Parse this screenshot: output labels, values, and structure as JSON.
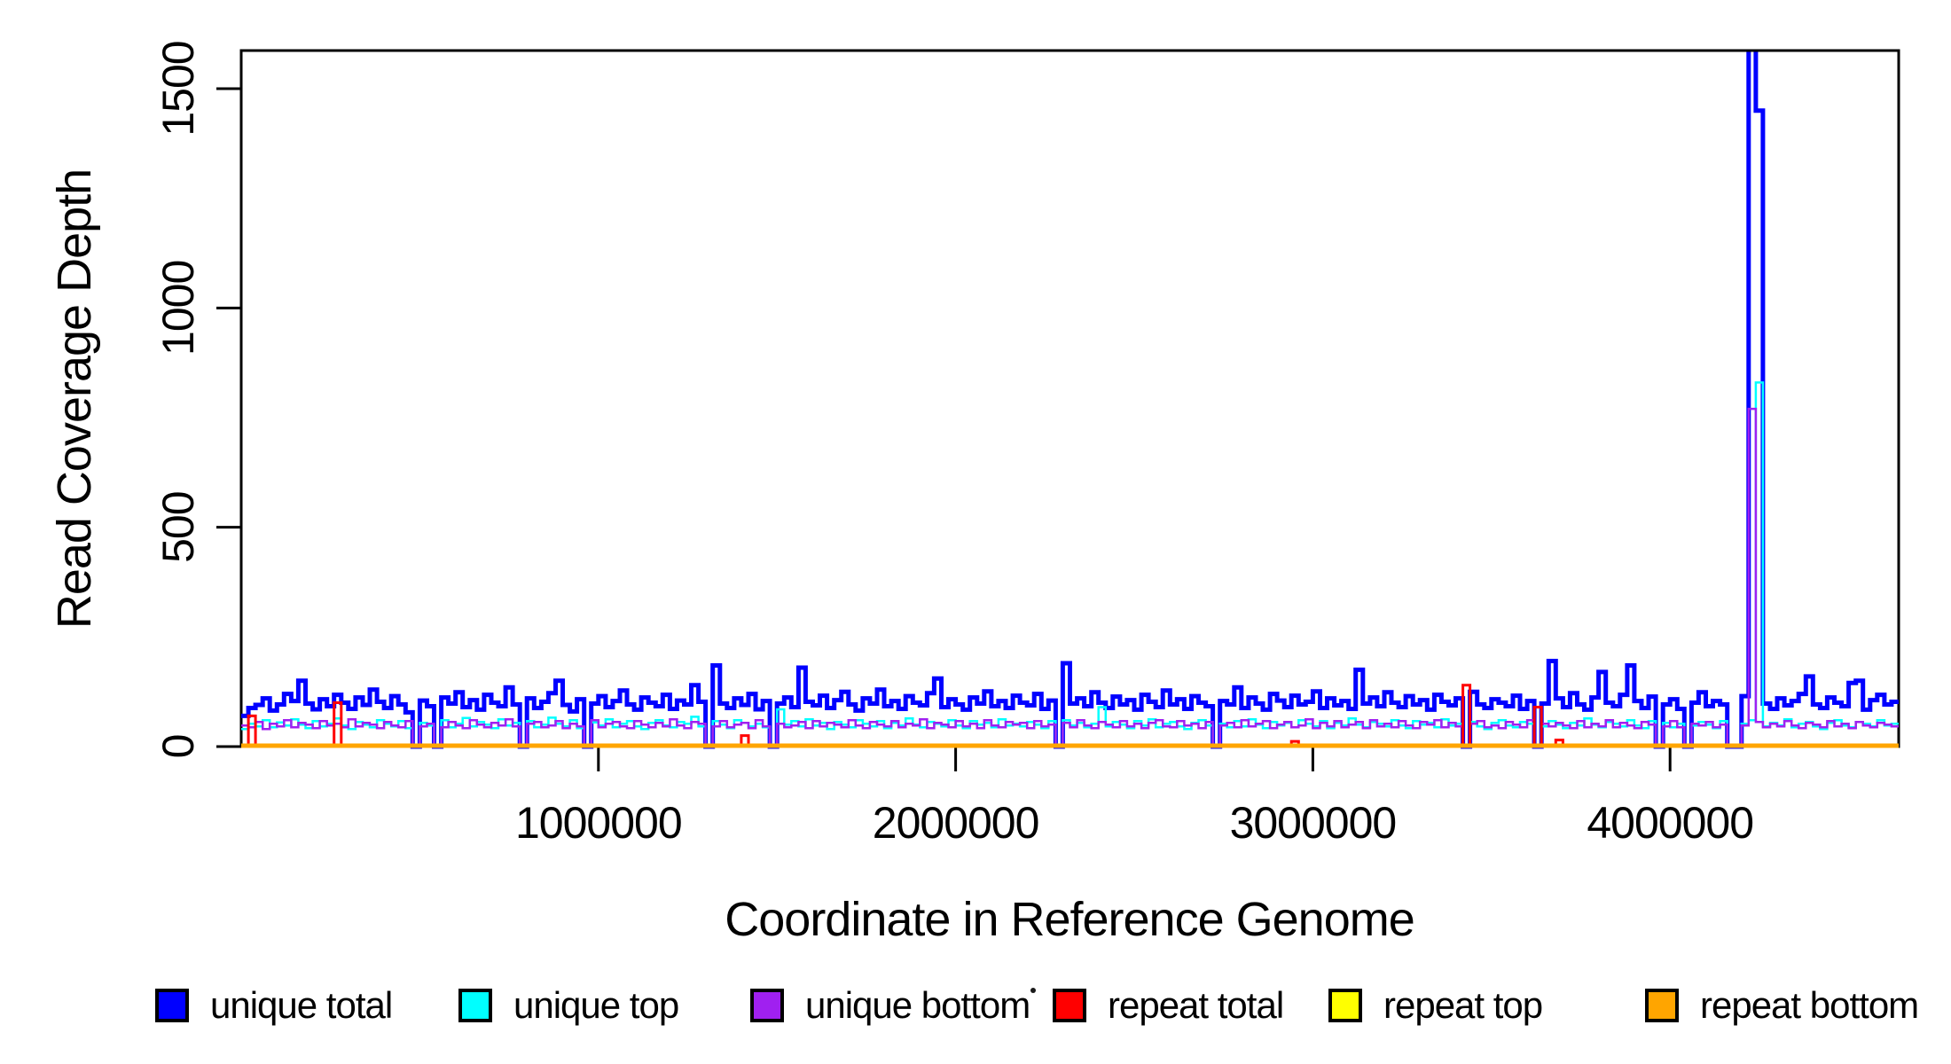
{
  "axes": {
    "x": {
      "label": "Coordinate in Reference Genome",
      "ticks": [
        1000000,
        2000000,
        3000000,
        4000000
      ],
      "tick_labels": [
        "1000000",
        "2000000",
        "3000000",
        "4000000"
      ],
      "range": [
        0,
        4640000
      ]
    },
    "y": {
      "label": "Read Coverage Depth",
      "ticks": [
        0,
        500,
        1000,
        1500
      ],
      "tick_labels": [
        "0",
        "500",
        "1000",
        "1500"
      ],
      "range": [
        0,
        1587
      ]
    }
  },
  "legend": {
    "items": [
      {
        "label": "unique total",
        "color": "#0000FF"
      },
      {
        "label": "unique top",
        "color": "#00FFFF"
      },
      {
        "label": "unique bottom",
        "color": "#A020F0"
      },
      {
        "label": "repeat total",
        "color": "#FF0000"
      },
      {
        "label": "repeat top",
        "color": "#FFFF00"
      },
      {
        "label": "repeat bottom",
        "color": "#FFA500"
      }
    ]
  },
  "chart_data": {
    "type": "line",
    "step": true,
    "title": "",
    "xlabel": "Coordinate in Reference Genome",
    "ylabel": "Read Coverage Depth",
    "xlim": [
      0,
      4640000
    ],
    "ylim": [
      0,
      1587
    ],
    "bin_size": 20000,
    "grid": false,
    "legend_position": "bottom",
    "annotations": {
      "main_peak_coordinate": 4235000,
      "main_peak_clipped_at_top": true,
      "main_peak_unique_total": 1620,
      "main_peak_step_value": 1450,
      "main_peak_unique_top": 830,
      "main_peak_unique_bottom": 770
    },
    "series": [
      {
        "name": "unique total",
        "color": "#0000FF",
        "line_width": 5,
        "values": [
          70,
          88,
          95,
          110,
          82,
          96,
          120,
          104,
          150,
          98,
          85,
          108,
          92,
          118,
          100,
          86,
          112,
          95,
          130,
          102,
          88,
          115,
          96,
          78,
          0,
          105,
          92,
          0,
          112,
          98,
          124,
          90,
          106,
          84,
          118,
          100,
          92,
          135,
          96,
          0,
          110,
          88,
          102,
          122,
          150,
          95,
          80,
          108,
          0,
          98,
          115,
          90,
          104,
          128,
          96,
          84,
          112,
          100,
          92,
          118,
          86,
          105,
          96,
          140,
          102,
          0,
          185,
          98,
          88,
          110,
          95,
          120,
          85,
          104,
          0,
          98,
          112,
          90,
          180,
          102,
          94,
          116,
          88,
          106,
          125,
          96,
          82,
          110,
          98,
          130,
          92,
          104,
          86,
          115,
          100,
          94,
          122,
          155,
          90,
          108,
          96,
          84,
          112,
          98,
          126,
          92,
          104,
          88,
          116,
          100,
          94,
          120,
          86,
          105,
          0,
          190,
          98,
          110,
          92,
          124,
          100,
          88,
          114,
          96,
          106,
          84,
          118,
          102,
          90,
          128,
          96,
          108,
          86,
          115,
          100,
          92,
          0,
          104,
          96,
          135,
          88,
          112,
          98,
          84,
          120,
          105,
          90,
          116,
          96,
          102,
          126,
          88,
          110,
          94,
          104,
          86,
          175,
          98,
          112,
          92,
          124,
          100,
          90,
          115,
          96,
          106,
          84,
          118,
          102,
          94,
          110,
          0,
          125,
          96,
          88,
          108,
          100,
          92,
          116,
          86,
          104,
          0,
          98,
          195,
          110,
          90,
          122,
          96,
          84,
          112,
          170,
          100,
          92,
          118,
          185,
          104,
          88,
          114,
          0,
          96,
          108,
          86,
          0,
          100,
          124,
          92,
          104,
          96,
          0,
          0,
          115,
          1620,
          1450,
          98,
          86,
          110,
          94,
          104,
          120,
          160,
          96,
          88,
          112,
          100,
          92,
          145,
          150,
          84,
          106,
          118,
          96,
          102
        ]
      },
      {
        "name": "unique top",
        "color": "#00FFFF",
        "line_width": 2.5,
        "values": [
          40,
          52,
          46,
          60,
          44,
          55,
          48,
          62,
          50,
          42,
          58,
          46,
          52,
          64,
          48,
          40,
          56,
          50,
          44,
          60,
          52,
          46,
          58,
          42,
          0,
          54,
          48,
          0,
          60,
          44,
          52,
          65,
          46,
          56,
          50,
          42,
          62,
          48,
          54,
          0,
          58,
          44,
          50,
          66,
          52,
          46,
          60,
          42,
          0,
          55,
          48,
          62,
          44,
          52,
          58,
          46,
          40,
          54,
          60,
          48,
          44,
          56,
          52,
          68,
          46,
          0,
          58,
          50,
          42,
          60,
          54,
          46,
          52,
          44,
          0,
          85,
          50,
          58,
          46,
          62,
          48,
          54,
          40,
          56,
          50,
          44,
          60,
          52,
          46,
          58,
          42,
          54,
          48,
          64,
          50,
          44,
          56,
          52,
          46,
          60,
          48,
          42,
          58,
          50,
          54,
          44,
          62,
          48,
          52,
          46,
          56,
          50,
          42,
          58,
          0,
          60,
          48,
          54,
          44,
          52,
          90,
          46,
          56,
          50,
          42,
          58,
          48,
          62,
          44,
          52,
          56,
          46,
          40,
          54,
          60,
          48,
          0,
          52,
          44,
          58,
          46,
          62,
          50,
          42,
          56,
          48,
          54,
          44,
          60,
          52,
          46,
          58,
          42,
          54,
          48,
          64,
          50,
          44,
          56,
          52,
          46,
          60,
          48,
          42,
          58,
          50,
          54,
          44,
          62,
          48,
          52,
          0,
          56,
          46,
          40,
          54,
          60,
          48,
          44,
          56,
          52,
          0,
          46,
          58,
          50,
          42,
          54,
          48,
          64,
          50,
          44,
          56,
          52,
          46,
          60,
          48,
          42,
          58,
          0,
          54,
          44,
          52,
          0,
          48,
          56,
          50,
          42,
          58,
          0,
          0,
          52,
          60,
          830,
          46,
          54,
          48,
          62,
          44,
          52,
          56,
          46,
          40,
          54,
          60,
          48,
          44,
          56,
          52,
          46,
          60,
          48,
          52
        ]
      },
      {
        "name": "unique bottom",
        "color": "#A020F0",
        "line_width": 2.5,
        "values": [
          48,
          44,
          56,
          40,
          52,
          46,
          60,
          44,
          54,
          50,
          42,
          58,
          48,
          52,
          44,
          62,
          46,
          54,
          50,
          42,
          56,
          48,
          44,
          58,
          0,
          46,
          52,
          0,
          44,
          56,
          48,
          42,
          60,
          50,
          44,
          54,
          48,
          62,
          46,
          0,
          52,
          56,
          44,
          48,
          58,
          42,
          52,
          46,
          0,
          60,
          44,
          52,
          56,
          46,
          42,
          58,
          50,
          44,
          54,
          46,
          62,
          48,
          42,
          56,
          52,
          0,
          46,
          58,
          44,
          50,
          54,
          42,
          60,
          46,
          0,
          52,
          44,
          48,
          56,
          42,
          58,
          46,
          54,
          50,
          44,
          60,
          48,
          42,
          56,
          50,
          46,
          58,
          44,
          52,
          48,
          62,
          42,
          54,
          50,
          44,
          58,
          46,
          52,
          42,
          60,
          48,
          44,
          56,
          50,
          54,
          42,
          58,
          46,
          50,
          0,
          54,
          44,
          60,
          48,
          42,
          56,
          50,
          44,
          58,
          46,
          52,
          42,
          54,
          60,
          46,
          44,
          58,
          48,
          52,
          42,
          56,
          0,
          48,
          54,
          44,
          60,
          46,
          52,
          58,
          42,
          50,
          56,
          44,
          48,
          62,
          42,
          54,
          46,
          58,
          44,
          50,
          56,
          42,
          60,
          46,
          52,
          44,
          58,
          48,
          42,
          56,
          50,
          60,
          44,
          54,
          46,
          0,
          52,
          58,
          44,
          48,
          42,
          56,
          50,
          44,
          60,
          0,
          52,
          46,
          54,
          48,
          42,
          58,
          44,
          52,
          46,
          60,
          44,
          54,
          48,
          42,
          56,
          50,
          0,
          46,
          58,
          44,
          0,
          52,
          48,
          56,
          44,
          50,
          0,
          0,
          48,
          770,
          56,
          44,
          52,
          46,
          58,
          48,
          42,
          54,
          50,
          44,
          58,
          46,
          52,
          42,
          56,
          48,
          44,
          54,
          50,
          46
        ]
      },
      {
        "name": "repeat total",
        "color": "#FF0000",
        "line_width": 3,
        "baseline": 1,
        "spikes": [
          [
            1,
            70
          ],
          [
            13,
            100
          ],
          [
            70,
            25
          ],
          [
            147,
            12
          ],
          [
            171,
            140
          ],
          [
            181,
            90
          ],
          [
            184,
            15
          ]
        ]
      },
      {
        "name": "repeat top",
        "color": "#FFFF00",
        "line_width": 2,
        "baseline": 1,
        "spikes": []
      },
      {
        "name": "repeat bottom",
        "color": "#FFA500",
        "line_width": 5,
        "baseline": 2,
        "spikes": []
      }
    ]
  },
  "artifacts": {
    "stray_dot": "."
  }
}
